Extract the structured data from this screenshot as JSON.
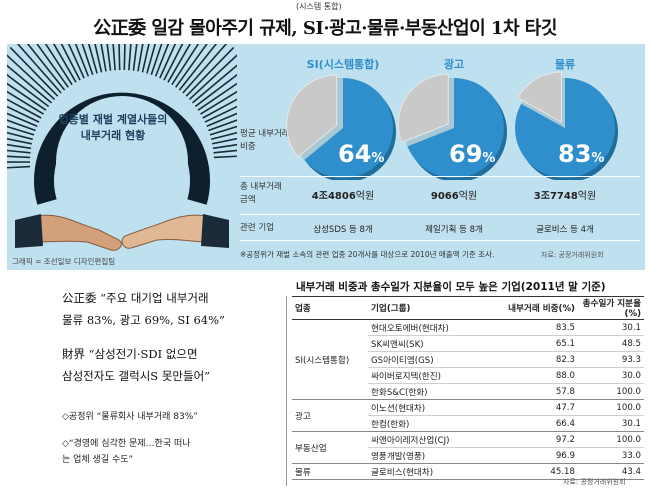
{
  "headline": {
    "superscript": "(시스템 통합)",
    "title": "公正委 일감 몰아주기 규제, SI·광고·물류·부동산업이 1차 타깃"
  },
  "infographic": {
    "circle_label_line1": "업종별 재벌 계열사들의",
    "circle_label_line2": "내부거래 현황",
    "credit": "그래픽 = 조선일보 디자인편집팀",
    "row_labels": {
      "avg_ratio_line1": "평균 내부거래",
      "avg_ratio_line2": "비중",
      "total_line1": "총 내부거래",
      "total_line2": "금액",
      "related": "관련 기업"
    },
    "columns": [
      {
        "name": "SI(시스템통합)",
        "pct_value": 64,
        "pct_unit": "%",
        "amount_num": "4조4806",
        "amount_unit": "억원",
        "companies": "삼성SDS 등 8개"
      },
      {
        "name": "광고",
        "pct_value": 69,
        "pct_unit": "%",
        "amount_num": "9066",
        "amount_unit": "억원",
        "companies": "제일기획 등 8개"
      },
      {
        "name": "물류",
        "pct_value": 83,
        "pct_unit": "%",
        "amount_num": "3조7748",
        "amount_unit": "억원",
        "companies": "글로비스 등 4개"
      }
    ],
    "note": "※공정위가 재벌 소속의 관련 업종 20개사를 대상으로 2010년 매출액 기준 조사.",
    "source": "자료: 공정거래위원회",
    "colors": {
      "pie_dark": "#2f8fcc",
      "pie_light": "#c9c9c9",
      "panel_bg": "#bfe0ef"
    }
  },
  "left_text": {
    "quote1_line1": "公正委 “주요 대기업 내부거래",
    "quote1_line2": "물류 83%, 광고 69%, SI 64%”",
    "quote2_line1": "財界 “삼성전기·SDI 없으면",
    "quote2_line2": "삼성전자도 갤럭시S 못만들어”",
    "bullet1": "◇공정위 “물류회사 내부거래 83%”",
    "bullet2_line1": "◇“경영에 심각한 문제…한국 떠나",
    "bullet2_line2": "는 업체 생길 수도”"
  },
  "table": {
    "title": "내부거래 비중과 총수일가 지분율이 모두 높은 기업(2011년 말 기준)",
    "headers": {
      "industry": "업종",
      "company": "기업(그룹)",
      "ratio": "내부거래 비중(%)",
      "stake": "총수일가 지분율(%)"
    },
    "groups": [
      {
        "industry": "SI(시스템통합)",
        "rows": [
          {
            "company": "현대오토에버(현대차)",
            "ratio": "83.5",
            "stake": "30.1"
          },
          {
            "company": "SK씨앤씨(SK)",
            "ratio": "65.1",
            "stake": "48.5"
          },
          {
            "company": "GS아이티엠(GS)",
            "ratio": "82.3",
            "stake": "93.3"
          },
          {
            "company": "싸이버로지텍(한진)",
            "ratio": "88.0",
            "stake": "30.0"
          },
          {
            "company": "한화S&C(한화)",
            "ratio": "57.8",
            "stake": "100.0"
          }
        ]
      },
      {
        "industry": "광고",
        "rows": [
          {
            "company": "이노션(현대차)",
            "ratio": "47.7",
            "stake": "100.0"
          },
          {
            "company": "한컴(한화)",
            "ratio": "66.4",
            "stake": "30.1"
          }
        ]
      },
      {
        "industry": "부동산업",
        "rows": [
          {
            "company": "씨앤아이레저산업(CJ)",
            "ratio": "97.2",
            "stake": "100.0"
          },
          {
            "company": "영풍개발(영풍)",
            "ratio": "96.9",
            "stake": "33.0"
          }
        ]
      },
      {
        "industry": "물류",
        "rows": [
          {
            "company": "글로비스(현대차)",
            "ratio": "45.18",
            "stake": "43.4"
          }
        ]
      }
    ],
    "source": "자료: 공정거래위원회"
  }
}
